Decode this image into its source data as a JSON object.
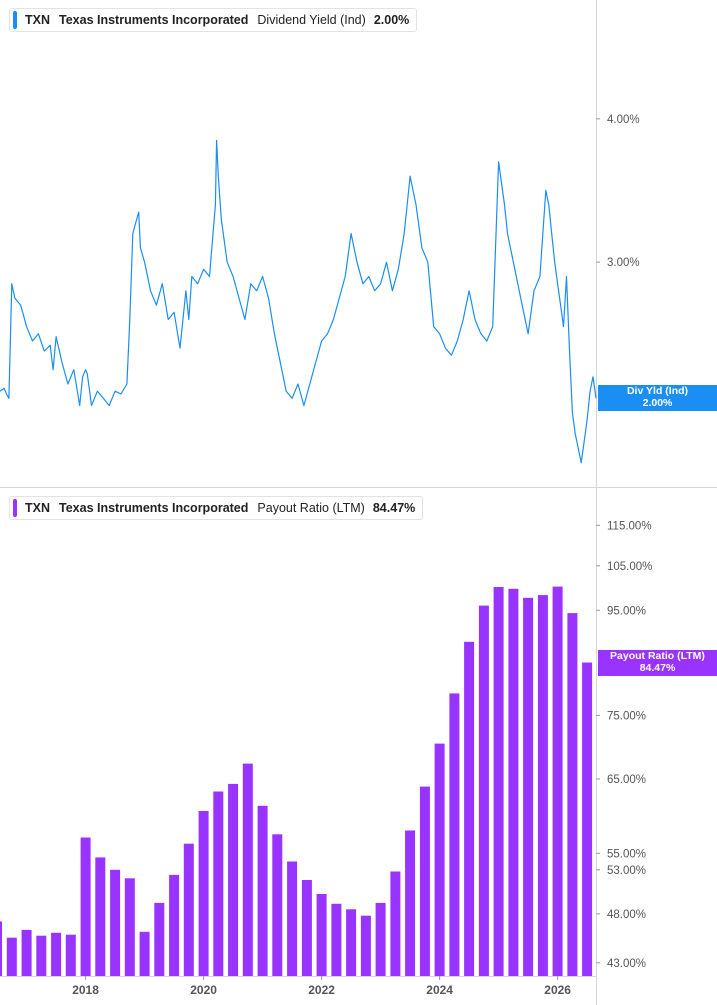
{
  "chart_data": [
    {
      "type": "line",
      "ticker": "TXN",
      "company": "Texas Instruments Incorporated",
      "metric": "Dividend Yield (Ind)",
      "current_value": "2.00%",
      "tag_label": "Div Yld (Ind)",
      "tag_value": "2.00%",
      "color": "#1a8ef2",
      "ylim": [
        1.55,
        4.55
      ],
      "y_ticks": [
        4.0,
        3.0
      ],
      "y_tick_labels": [
        "4.00%",
        "3.00%"
      ],
      "x_range": [
        2016.55,
        2026.65
      ],
      "x": [
        2016.55,
        2016.62,
        2016.66,
        2016.7,
        2016.75,
        2016.8,
        2016.9,
        2017.0,
        2017.1,
        2017.2,
        2017.3,
        2017.4,
        2017.45,
        2017.5,
        2017.6,
        2017.7,
        2017.8,
        2017.9,
        2017.95,
        2018.0,
        2018.03,
        2018.1,
        2018.2,
        2018.3,
        2018.4,
        2018.5,
        2018.6,
        2018.7,
        2018.75,
        2018.8,
        2018.9,
        2018.93,
        2019.0,
        2019.1,
        2019.2,
        2019.3,
        2019.4,
        2019.5,
        2019.6,
        2019.7,
        2019.75,
        2019.8,
        2019.9,
        2020.0,
        2020.1,
        2020.2,
        2020.22,
        2020.25,
        2020.3,
        2020.4,
        2020.5,
        2020.6,
        2020.7,
        2020.8,
        2020.9,
        2021.0,
        2021.1,
        2021.2,
        2021.3,
        2021.4,
        2021.5,
        2021.6,
        2021.7,
        2021.8,
        2021.9,
        2022.0,
        2022.1,
        2022.2,
        2022.3,
        2022.4,
        2022.5,
        2022.6,
        2022.7,
        2022.8,
        2022.9,
        2023.0,
        2023.1,
        2023.2,
        2023.3,
        2023.4,
        2023.5,
        2023.6,
        2023.7,
        2023.8,
        2023.9,
        2024.0,
        2024.1,
        2024.2,
        2024.3,
        2024.4,
        2024.5,
        2024.6,
        2024.7,
        2024.8,
        2024.9,
        2025.0,
        2025.1,
        2025.15,
        2025.2,
        2025.3,
        2025.4,
        2025.5,
        2025.6,
        2025.7,
        2025.8,
        2025.85,
        2025.9,
        2025.95,
        2026.0,
        2026.05,
        2026.1,
        2026.15,
        2026.2,
        2026.25,
        2026.3,
        2026.35,
        2026.4,
        2026.45,
        2026.5,
        2026.55,
        2026.6,
        2026.65
      ],
      "values": [
        2.1,
        2.12,
        2.08,
        2.05,
        2.85,
        2.75,
        2.7,
        2.55,
        2.45,
        2.5,
        2.38,
        2.42,
        2.25,
        2.48,
        2.3,
        2.15,
        2.25,
        2.0,
        2.2,
        2.25,
        2.22,
        2.0,
        2.1,
        2.05,
        2.0,
        2.1,
        2.08,
        2.15,
        2.6,
        3.2,
        3.35,
        3.1,
        3.0,
        2.8,
        2.7,
        2.85,
        2.6,
        2.65,
        2.4,
        2.8,
        2.6,
        2.9,
        2.85,
        2.95,
        2.9,
        3.4,
        3.85,
        3.6,
        3.3,
        3.0,
        2.9,
        2.75,
        2.6,
        2.85,
        2.8,
        2.9,
        2.75,
        2.5,
        2.3,
        2.1,
        2.05,
        2.15,
        2.0,
        2.15,
        2.3,
        2.45,
        2.5,
        2.6,
        2.75,
        2.9,
        3.2,
        3.0,
        2.85,
        2.9,
        2.8,
        2.85,
        3.0,
        2.8,
        2.95,
        3.2,
        3.6,
        3.4,
        3.1,
        3.0,
        2.55,
        2.5,
        2.4,
        2.35,
        2.45,
        2.6,
        2.8,
        2.6,
        2.5,
        2.45,
        2.55,
        3.7,
        3.4,
        3.2,
        3.1,
        2.9,
        2.7,
        2.5,
        2.8,
        2.9,
        3.5,
        3.4,
        3.2,
        3.0,
        2.85,
        2.7,
        2.55,
        2.9,
        2.4,
        1.95,
        1.8,
        1.7,
        1.6,
        1.75,
        1.9,
        2.1,
        2.2,
        2.05
      ]
    },
    {
      "type": "bar",
      "ticker": "TXN",
      "company": "Texas Instruments Incorporated",
      "metric": "Payout Ratio (LTM)",
      "current_value": "84.47%",
      "tag_label": "Payout Ratio (LTM)",
      "tag_value": "84.47%",
      "color": "#9933ff",
      "scale": "log",
      "ylim": [
        42.5,
        118.5
      ],
      "y_ticks": [
        115,
        105,
        95,
        75,
        65,
        55,
        53,
        48,
        43
      ],
      "y_tick_labels": [
        "115.00%",
        "105.00%",
        "95.00%",
        "75.00%",
        "65.00%",
        "55.00%",
        "53.00%",
        "48.00%",
        "43.00%"
      ],
      "x_ticks": [
        2018,
        2020,
        2022,
        2024,
        2026
      ],
      "x_tick_labels": [
        "2018",
        "2020",
        "2022",
        "2024",
        "2026"
      ],
      "x_range": [
        2016.55,
        2026.65
      ],
      "x": [
        2016.5,
        2016.75,
        2017.0,
        2017.25,
        2017.5,
        2017.75,
        2018.0,
        2018.25,
        2018.5,
        2018.75,
        2019.0,
        2019.25,
        2019.5,
        2019.75,
        2020.0,
        2020.25,
        2020.5,
        2020.75,
        2021.0,
        2021.25,
        2021.5,
        2021.75,
        2022.0,
        2022.25,
        2022.5,
        2022.75,
        2023.0,
        2023.25,
        2023.5,
        2023.75,
        2024.0,
        2024.25,
        2024.5,
        2024.75,
        2025.0,
        2025.25,
        2025.5,
        2025.75,
        2026.0,
        2026.25,
        2026.5
      ],
      "values": [
        47.2,
        45.5,
        46.3,
        45.7,
        46.0,
        45.8,
        57.0,
        54.5,
        53.0,
        52.0,
        46.1,
        49.2,
        52.4,
        56.2,
        60.5,
        63.2,
        64.3,
        67.3,
        61.2,
        57.4,
        54.0,
        51.8,
        50.2,
        49.1,
        48.5,
        47.8,
        49.2,
        52.8,
        57.9,
        63.9,
        70.4,
        78.8,
        88.5,
        96.0,
        100.1,
        99.7,
        97.7,
        98.3,
        100.2,
        94.4,
        84.47
      ]
    }
  ]
}
